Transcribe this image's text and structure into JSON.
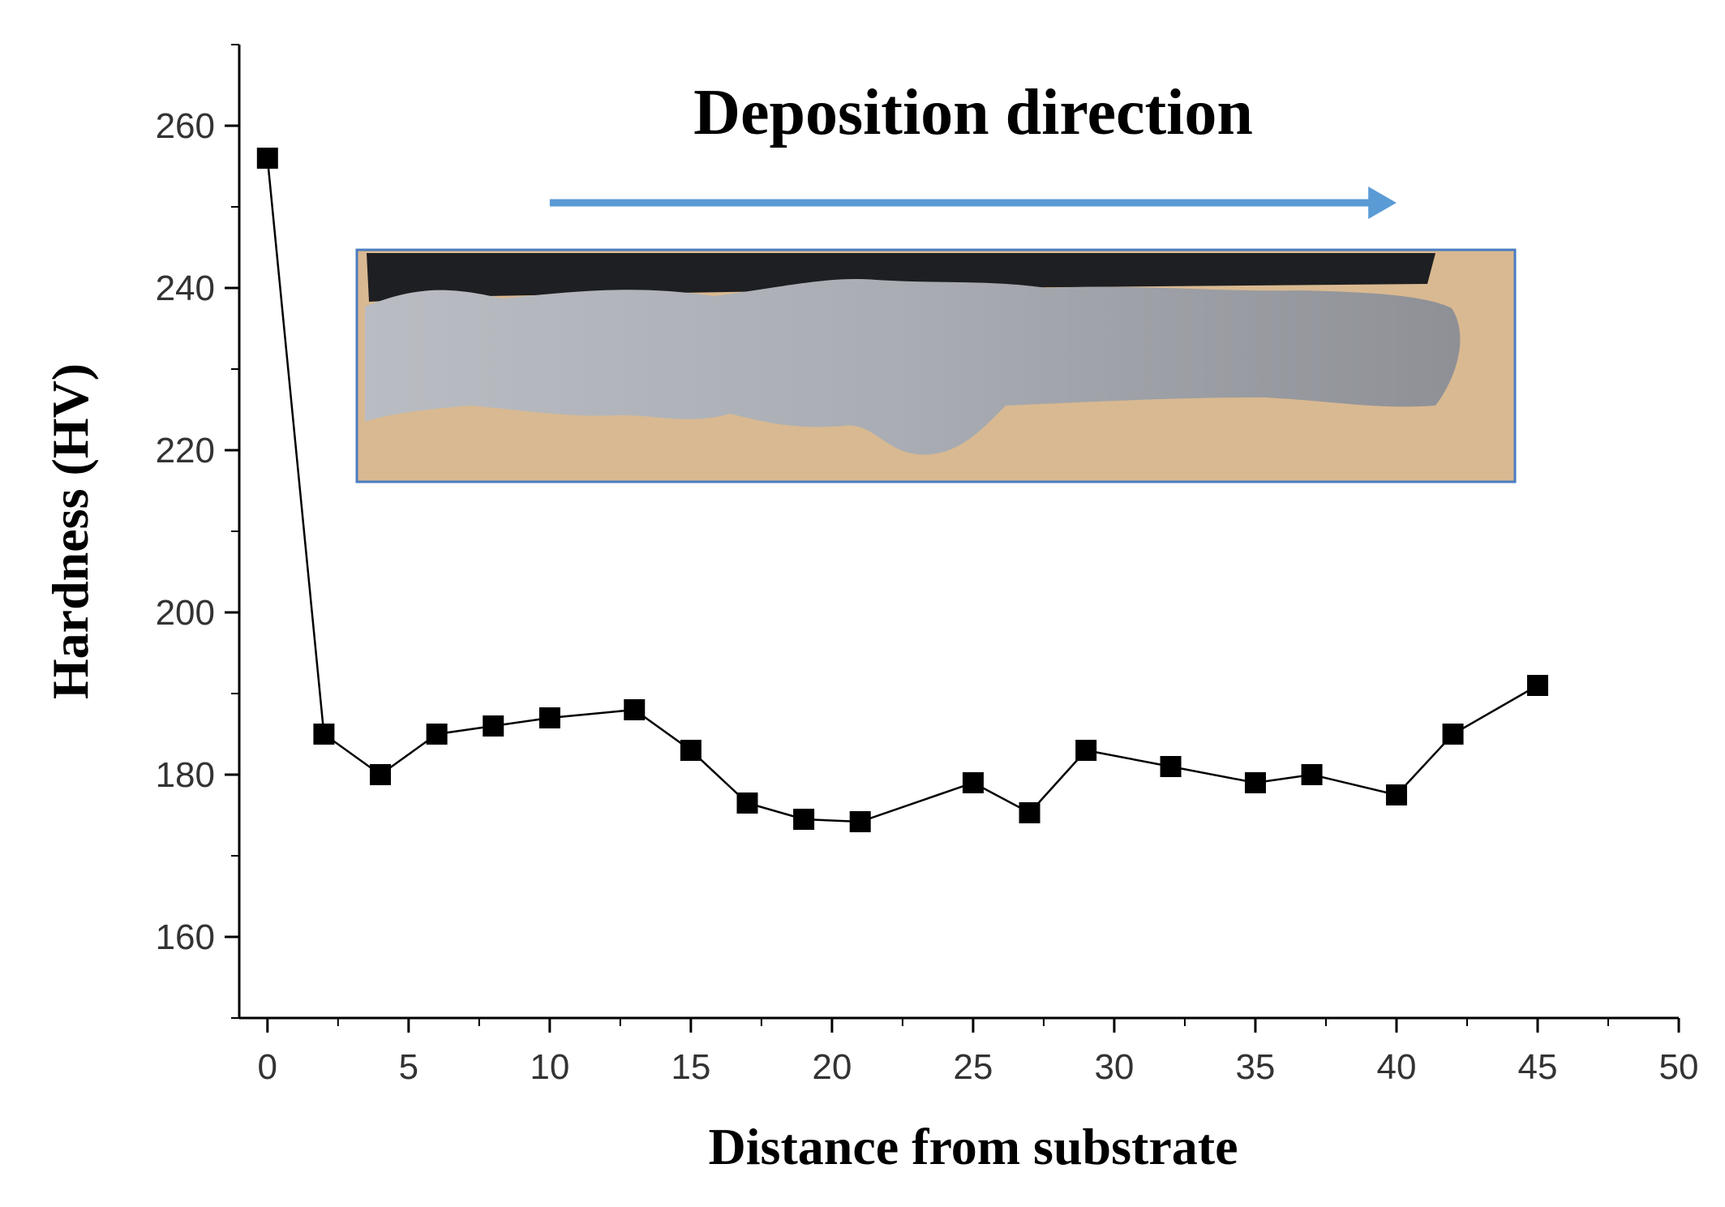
{
  "chart_data": {
    "type": "line",
    "title": "",
    "xlabel": "Distance from substrate",
    "ylabel": "Hardness (HV)",
    "xlim": [
      -1,
      50
    ],
    "ylim": [
      150,
      270
    ],
    "xticks": [
      0,
      5,
      10,
      15,
      20,
      25,
      30,
      35,
      40,
      45,
      50
    ],
    "yticks": [
      160,
      180,
      200,
      220,
      240,
      260
    ],
    "grid": false,
    "series": [
      {
        "marker": "square",
        "color": "#000000",
        "x": [
          0,
          2,
          4,
          6,
          8,
          10,
          13,
          15,
          17,
          19,
          21,
          25,
          27,
          29,
          32,
          35,
          37,
          40,
          42,
          45
        ],
        "y": [
          256,
          185,
          180,
          185,
          186,
          187,
          188,
          183,
          176.5,
          174.5,
          174.2,
          179,
          175.3,
          183,
          181,
          179,
          180,
          177.5,
          185,
          191
        ]
      }
    ],
    "annotations": [
      {
        "text": "Deposition direction",
        "arrow_color": "#5b9bd5"
      }
    ],
    "inset_image": {
      "description_icon": "sample-photo-icon",
      "border_color": "#4a7cc0"
    }
  }
}
